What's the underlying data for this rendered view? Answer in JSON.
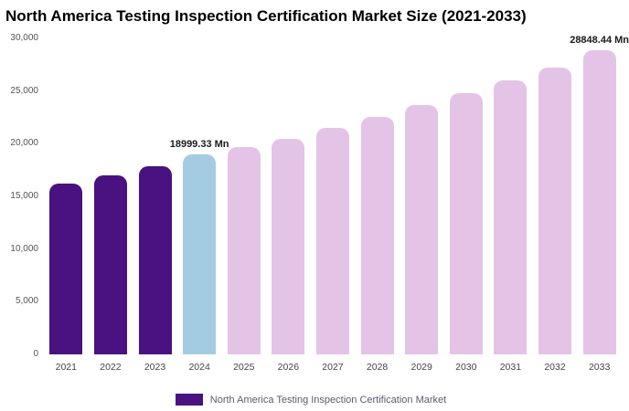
{
  "chart_data": {
    "type": "bar",
    "title": "North America Testing Inspection Certification Market Size (2021-2033)",
    "categories": [
      "2021",
      "2022",
      "2023",
      "2024",
      "2025",
      "2026",
      "2027",
      "2028",
      "2029",
      "2030",
      "2031",
      "2032",
      "2033"
    ],
    "values": [
      16200,
      17000,
      17900,
      18999.33,
      19700,
      20500,
      21500,
      22550,
      23650,
      24800,
      26000,
      27250,
      28848.44
    ],
    "unit": "Mn",
    "ylim": [
      0,
      30000
    ],
    "yticks": [
      0,
      5000,
      10000,
      15000,
      20000,
      25000,
      30000
    ],
    "grid": false,
    "legend_position": "bottom",
    "bar_colors": [
      "#4a1181",
      "#4a1181",
      "#4a1181",
      "#a3cce3",
      "#e3c4e6",
      "#e3c4e6",
      "#e3c4e6",
      "#e3c4e6",
      "#e3c4e6",
      "#e3c4e6",
      "#e3c4e6",
      "#e3c4e6",
      "#e3c4e6"
    ],
    "annotations": [
      {
        "index": 3,
        "text": "18999.33 Mn"
      },
      {
        "index": 12,
        "text": "28848.44 Mn"
      }
    ],
    "legend": {
      "label": "North America Testing Inspection Certification Market",
      "swatch_color": "#4a1181"
    },
    "colors": {
      "historical": "#4a1181",
      "base_year": "#a3cce3",
      "forecast": "#e3c4e6"
    }
  }
}
